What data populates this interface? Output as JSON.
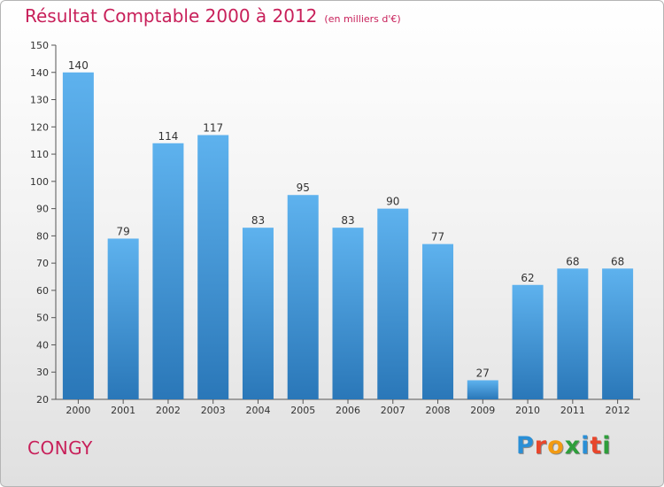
{
  "header": {
    "title": "Résultat Comptable 2000 à 2012",
    "unit": "(en milliers d'€)"
  },
  "footer": {
    "commune": "CONGY",
    "logo_letters": [
      {
        "ch": "P",
        "color": "#2a8fd6"
      },
      {
        "ch": "r",
        "color": "#e8462c"
      },
      {
        "ch": "o",
        "color": "#f29a12"
      },
      {
        "ch": "x",
        "color": "#2e9e3b"
      },
      {
        "ch": "i",
        "color": "#2a8fd6"
      },
      {
        "ch": "t",
        "color": "#e8462c"
      },
      {
        "ch": "i",
        "color": "#2e9e3b"
      }
    ]
  },
  "colors": {
    "bar_top": "#5eb2ee",
    "bar_bottom": "#2a77b8",
    "accent": "#c8205a"
  },
  "chart_data": {
    "type": "bar",
    "title": "Résultat Comptable 2000 à 2012",
    "subtitle": "(en milliers d'€)",
    "xlabel": "",
    "ylabel": "",
    "categories": [
      "2000",
      "2001",
      "2002",
      "2003",
      "2004",
      "2005",
      "2006",
      "2007",
      "2008",
      "2009",
      "2010",
      "2011",
      "2012"
    ],
    "values": [
      140,
      79,
      114,
      117,
      83,
      95,
      83,
      90,
      77,
      27,
      62,
      68,
      68
    ],
    "ylim": [
      20,
      150
    ],
    "yticks": [
      20,
      30,
      40,
      50,
      60,
      70,
      80,
      90,
      100,
      110,
      120,
      130,
      140,
      150
    ],
    "grid": false,
    "legend": "none"
  }
}
